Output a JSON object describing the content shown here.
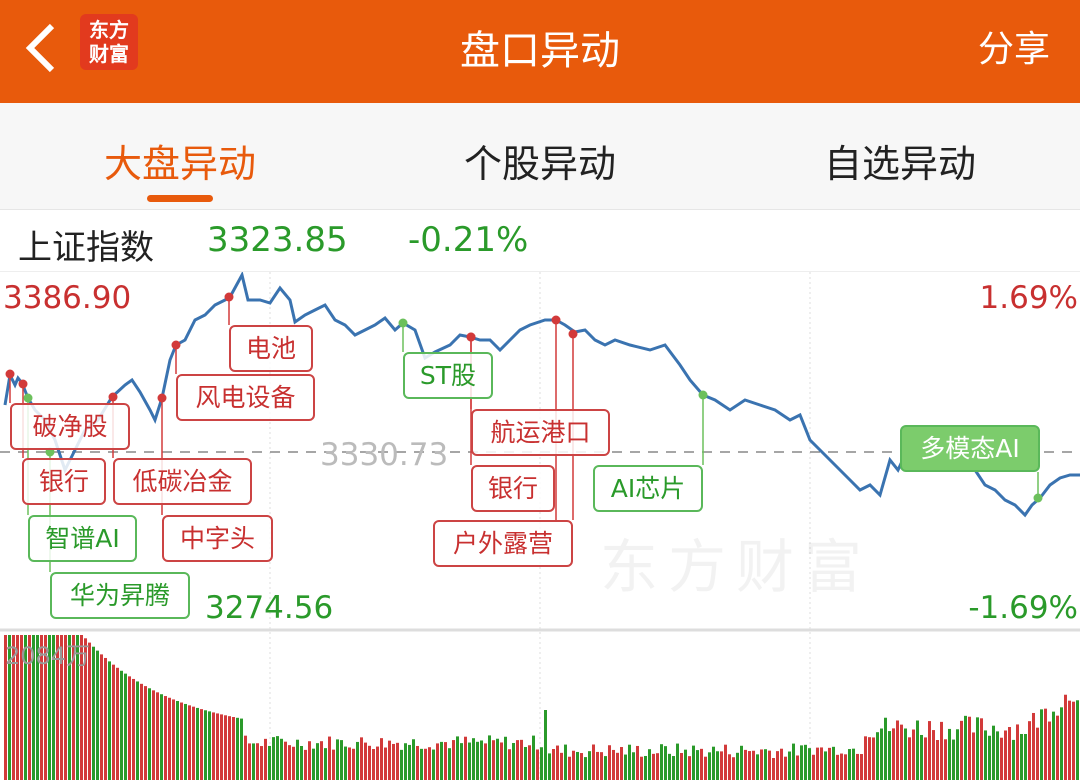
{
  "header": {
    "title": "盘口异动",
    "share_label": "分享",
    "logo_text": "东方财富",
    "back_icon": "chevron-left-icon"
  },
  "tabs": [
    {
      "label": "大盘异动",
      "active": true
    },
    {
      "label": "个股异动",
      "active": false
    },
    {
      "label": "自选异动",
      "active": false
    }
  ],
  "index": {
    "name": "上证指数",
    "value": "3323.85",
    "change": "-0.21%"
  },
  "chart_data": {
    "type": "line",
    "y_top": "3386.90",
    "y_mid": "3330.73",
    "y_bottom": "3274.56",
    "pct_top": "1.69%",
    "pct_bottom": "-1.69%",
    "ylim": [
      3274.56,
      3386.9
    ],
    "volume_max_label": "2084万",
    "watermark": "东方财富",
    "colors": {
      "up": "#d23a3a",
      "down": "#2a9a2a",
      "line": "#3a73b0"
    },
    "events": [
      {
        "label": "破净股",
        "type": "red"
      },
      {
        "label": "银行",
        "type": "red"
      },
      {
        "label": "智谱AI",
        "type": "green"
      },
      {
        "label": "华为昇腾",
        "type": "green"
      },
      {
        "label": "低碳冶金",
        "type": "red"
      },
      {
        "label": "中字头",
        "type": "red"
      },
      {
        "label": "风电设备",
        "type": "red"
      },
      {
        "label": "电池",
        "type": "red"
      },
      {
        "label": "ST股",
        "type": "green"
      },
      {
        "label": "航运港口",
        "type": "red"
      },
      {
        "label": "银行",
        "type": "red"
      },
      {
        "label": "户外露营",
        "type": "red"
      },
      {
        "label": "AI芯片",
        "type": "green"
      },
      {
        "label": "多模态AI",
        "type": "green"
      }
    ]
  }
}
